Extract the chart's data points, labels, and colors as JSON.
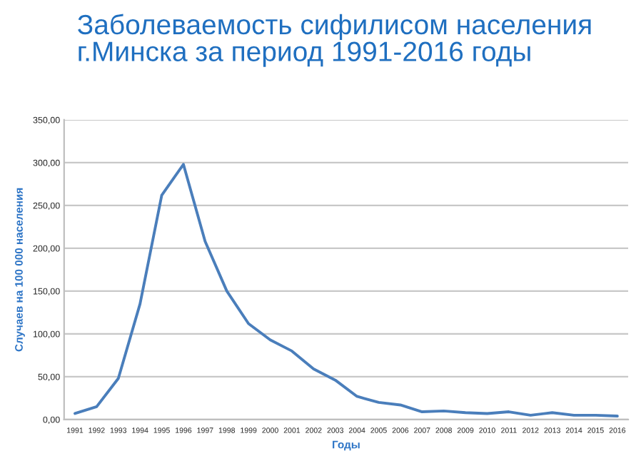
{
  "chart_data": {
    "type": "line",
    "title": "Заболеваемость сифилисом населения\nг.Минска за период 1991-2016 годы",
    "xlabel": "Годы",
    "ylabel": "Случаев на 100 000 населения",
    "categories": [
      "1991",
      "1992",
      "1993",
      "1994",
      "1995",
      "1996",
      "1997",
      "1998",
      "1999",
      "2000",
      "2001",
      "2002",
      "2003",
      "2004",
      "2005",
      "2006",
      "2007",
      "2008",
      "2009",
      "2010",
      "2011",
      "2012",
      "2013",
      "2014",
      "2015",
      "2016"
    ],
    "series": [
      {
        "color": "#4a7ebb",
        "values": [
          7,
          15,
          48,
          135,
          262,
          298,
          208,
          150,
          112,
          93,
          80,
          59,
          46,
          27,
          20,
          17,
          9,
          10,
          8,
          7,
          9,
          5,
          8,
          5,
          5,
          4
        ]
      }
    ],
    "ylim": [
      0,
      350
    ],
    "yticks": [
      {
        "value": 0,
        "label": "0,00"
      },
      {
        "value": 50,
        "label": "50,00"
      },
      {
        "value": 100,
        "label": "100,00"
      },
      {
        "value": 150,
        "label": "150,00"
      },
      {
        "value": 200,
        "label": "200,00"
      },
      {
        "value": 250,
        "label": "250,00"
      },
      {
        "value": 300,
        "label": "300,00"
      },
      {
        "value": 350,
        "label": "350,00"
      }
    ],
    "grid": "y",
    "marker": "none",
    "line_style": "solid"
  }
}
